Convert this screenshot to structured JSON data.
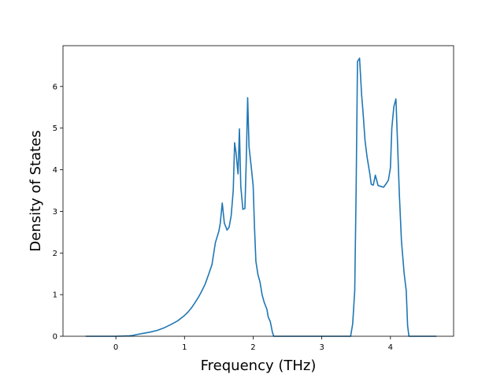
{
  "chart_data": {
    "type": "line",
    "title": "",
    "xlabel": "Frequency (THz)",
    "ylabel": "Density of States",
    "xlim": [
      -0.77,
      4.92
    ],
    "ylim": [
      0,
      6.98
    ],
    "grid": false,
    "legend": "none",
    "line_color": "#1f77b4",
    "xticks": [
      0,
      1,
      2,
      3,
      4
    ],
    "xtick_labels": [
      "0",
      "1",
      "2",
      "3",
      "4"
    ],
    "yticks": [
      0,
      1,
      2,
      3,
      4,
      5,
      6
    ],
    "ytick_labels": [
      "0",
      "1",
      "2",
      "3",
      "4",
      "5",
      "6"
    ],
    "series": [
      {
        "x": [
          -0.44,
          -0.2,
          0.0,
          0.2,
          0.25,
          0.3,
          0.4,
          0.5,
          0.6,
          0.7,
          0.8,
          0.9,
          1.0,
          1.05,
          1.1,
          1.15,
          1.2,
          1.25,
          1.3,
          1.35,
          1.4,
          1.45,
          1.5,
          1.52,
          1.55,
          1.58,
          1.62,
          1.65,
          1.68,
          1.71,
          1.73,
          1.75,
          1.78,
          1.8,
          1.82,
          1.85,
          1.88,
          1.9,
          1.92,
          1.94,
          1.97,
          2.0,
          2.02,
          2.04,
          2.07,
          2.1,
          2.13,
          2.16,
          2.2,
          2.22,
          2.25,
          2.28,
          2.3,
          2.5,
          3.0,
          3.3,
          3.42,
          3.45,
          3.48,
          3.5,
          3.52,
          3.55,
          3.58,
          3.6,
          3.63,
          3.66,
          3.7,
          3.72,
          3.75,
          3.78,
          3.82,
          3.86,
          3.9,
          3.94,
          3.97,
          4.0,
          4.02,
          4.05,
          4.08,
          4.1,
          4.13,
          4.16,
          4.2,
          4.23,
          4.25,
          4.27,
          4.35,
          4.5,
          4.67
        ],
        "y": [
          0.0,
          0.0,
          0.0,
          0.01,
          0.02,
          0.04,
          0.07,
          0.1,
          0.14,
          0.2,
          0.28,
          0.37,
          0.5,
          0.58,
          0.68,
          0.8,
          0.93,
          1.08,
          1.25,
          1.48,
          1.72,
          2.25,
          2.52,
          2.7,
          3.2,
          2.72,
          2.55,
          2.62,
          2.9,
          3.5,
          4.65,
          4.42,
          3.9,
          4.98,
          3.6,
          3.05,
          3.07,
          4.25,
          5.73,
          4.55,
          4.1,
          3.62,
          2.6,
          1.8,
          1.48,
          1.3,
          1.0,
          0.82,
          0.65,
          0.46,
          0.35,
          0.1,
          0.0,
          0.0,
          0.0,
          0.0,
          0.0,
          0.3,
          1.1,
          3.5,
          6.6,
          6.68,
          5.8,
          5.4,
          4.7,
          4.3,
          3.9,
          3.65,
          3.63,
          3.87,
          3.62,
          3.6,
          3.58,
          3.67,
          3.75,
          4.05,
          5.0,
          5.52,
          5.7,
          4.8,
          3.4,
          2.3,
          1.5,
          1.1,
          0.25,
          0.0,
          0.0,
          0.0,
          0.0
        ]
      }
    ]
  }
}
